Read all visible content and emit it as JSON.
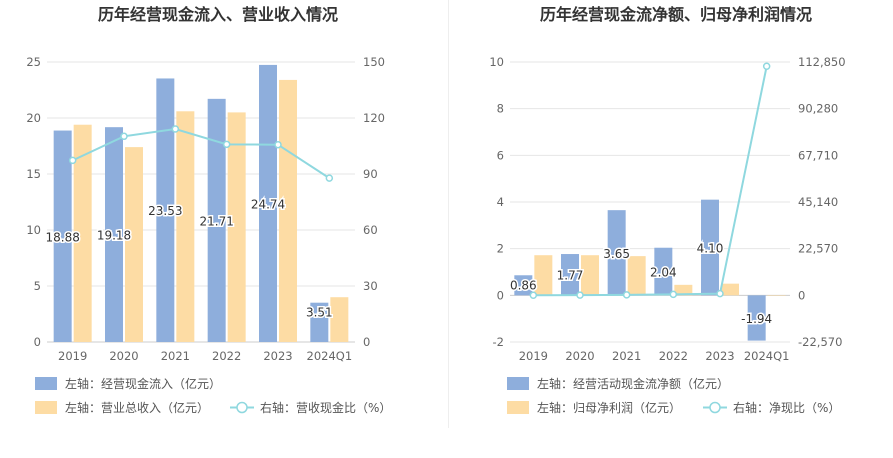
{
  "chart_data": [
    {
      "type": "bar",
      "title": "历年经营现金流入、营业收入情况",
      "categories": [
        "2019",
        "2020",
        "2021",
        "2022",
        "2023",
        "2024Q1"
      ],
      "y_left": {
        "range": [
          0,
          25
        ],
        "ticks": [
          "0",
          "5",
          "10",
          "15",
          "20",
          "25"
        ]
      },
      "y_right": {
        "range": [
          0,
          150
        ],
        "ticks": [
          "0",
          "30",
          "60",
          "90",
          "120",
          "150"
        ]
      },
      "series": [
        {
          "name": "左轴：经营现金流入（亿元）",
          "axis": "left",
          "kind": "bar",
          "color": "#8eaedc",
          "values": [
            18.88,
            19.18,
            23.53,
            21.71,
            24.74,
            3.51
          ],
          "labels": [
            "18.88",
            "19.18",
            "23.53",
            "21.71",
            "24.74",
            "3.51"
          ]
        },
        {
          "name": "左轴：营业总收入（亿元）",
          "axis": "left",
          "kind": "bar",
          "color": "#fddca4",
          "values": [
            19.4,
            17.4,
            20.6,
            20.5,
            23.4,
            4.0
          ]
        },
        {
          "name": "右轴：营收现金比（%）",
          "axis": "right",
          "kind": "line",
          "color": "#8fd8df",
          "values": [
            97.3,
            110.2,
            114.1,
            105.9,
            105.7,
            87.8
          ]
        }
      ]
    },
    {
      "type": "bar",
      "title": "历年经营现金流净额、归母净利润情况",
      "categories": [
        "2019",
        "2020",
        "2021",
        "2022",
        "2023",
        "2024Q1"
      ],
      "y_left": {
        "range": [
          -2,
          10
        ],
        "ticks": [
          "-2",
          "0",
          "2",
          "4",
          "6",
          "8",
          "10"
        ]
      },
      "y_right": {
        "range": [
          -22570,
          112850
        ],
        "ticks": [
          "-22,570",
          "0",
          "22,570",
          "45,140",
          "67,710",
          "90,280",
          "112,850"
        ]
      },
      "series": [
        {
          "name": "左轴：经营活动现金流净额（亿元）",
          "axis": "left",
          "kind": "bar",
          "color": "#8eaedc",
          "values": [
            0.86,
            1.77,
            3.65,
            2.04,
            4.1,
            -1.94
          ],
          "labels": [
            "0.86",
            "1.77",
            "3.65",
            "2.04",
            "4.10",
            "-1.94"
          ]
        },
        {
          "name": "左轴：归母净利润（亿元）",
          "axis": "left",
          "kind": "bar",
          "color": "#fddca4",
          "values": [
            1.72,
            1.72,
            1.68,
            0.45,
            0.5,
            -0.0002
          ]
        },
        {
          "name": "右轴：净现比（%）",
          "axis": "right",
          "kind": "line",
          "color": "#8fd8df",
          "values": [
            50,
            103,
            217,
            453,
            820,
            110800
          ]
        }
      ]
    }
  ]
}
